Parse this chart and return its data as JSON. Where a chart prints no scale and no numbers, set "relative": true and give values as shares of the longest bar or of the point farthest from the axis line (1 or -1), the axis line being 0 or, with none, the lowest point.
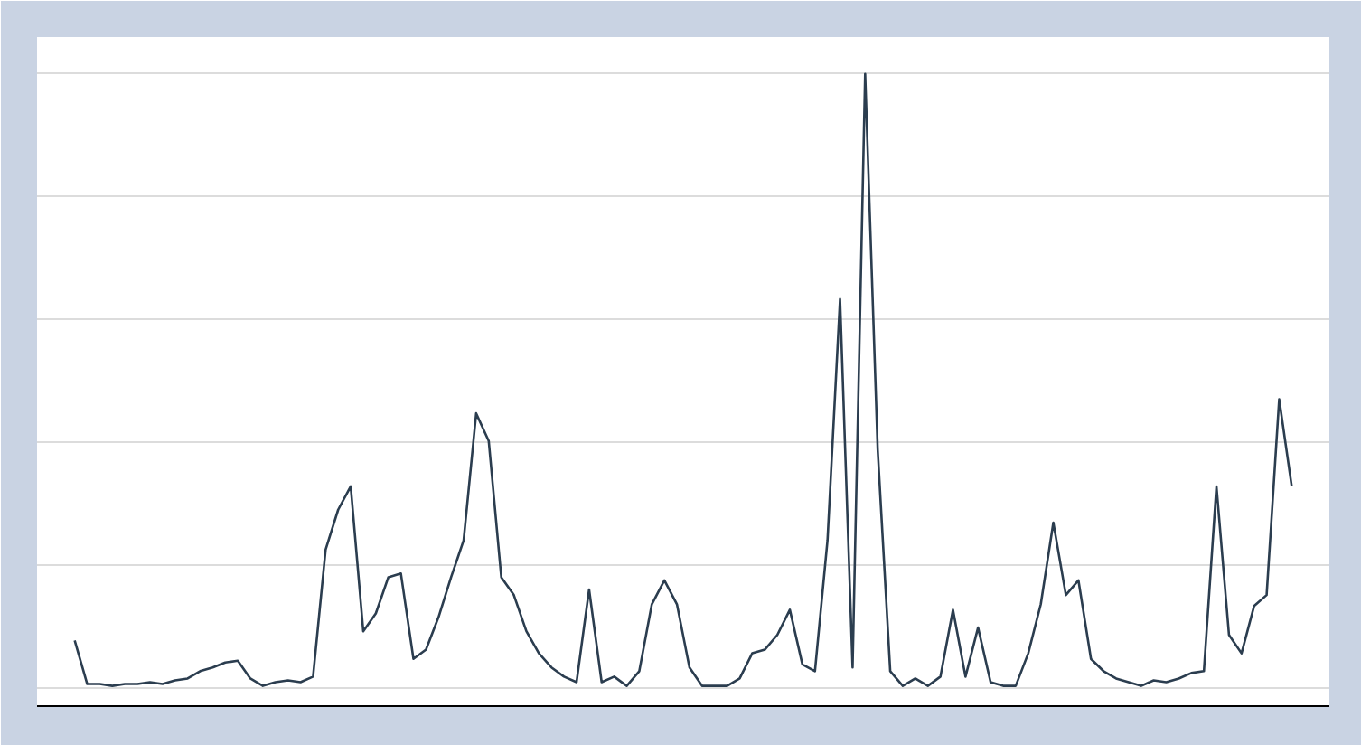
{
  "chart_data": {
    "type": "line",
    "relative": true,
    "grid": "y",
    "categories": [
      null,
      null,
      null,
      null,
      null,
      null,
      null,
      null,
      null,
      null,
      null,
      null,
      null,
      null,
      null,
      null,
      null,
      null,
      null,
      null,
      null,
      null,
      null,
      null,
      null,
      null,
      null,
      null,
      null,
      null,
      null,
      null,
      null,
      null,
      null,
      null,
      null,
      null,
      null,
      null,
      null,
      null,
      null,
      null,
      null,
      null,
      null,
      null,
      null,
      null,
      null,
      null,
      null,
      null,
      null,
      null,
      null,
      null,
      null,
      null,
      null,
      null,
      null,
      null,
      null,
      null,
      null,
      null,
      null,
      null,
      null,
      null,
      null,
      null,
      null,
      null,
      null,
      null,
      null,
      null,
      null,
      null,
      null,
      null,
      null,
      null,
      null,
      null,
      null,
      null,
      null,
      null,
      null,
      null,
      null,
      null,
      null,
      null
    ],
    "series": [
      {
        "color": "#2b3d4f",
        "values": [
          0.077,
          0.006,
          0.006,
          0.003,
          0.006,
          0.006,
          0.009,
          0.006,
          0.012,
          0.015,
          0.027,
          0.033,
          0.041,
          0.044,
          0.015,
          0.003,
          0.009,
          0.012,
          0.009,
          0.018,
          0.225,
          0.29,
          0.328,
          0.092,
          0.121,
          0.18,
          0.186,
          0.047,
          0.062,
          0.115,
          0.18,
          0.24,
          0.447,
          0.402,
          0.18,
          0.151,
          0.092,
          0.056,
          0.033,
          0.018,
          0.009,
          0.16,
          0.009,
          0.018,
          0.003,
          0.027,
          0.136,
          0.175,
          0.136,
          0.033,
          0.003,
          0.003,
          0.003,
          0.015,
          0.056,
          0.062,
          0.086,
          0.127,
          0.038,
          0.027,
          0.24,
          0.633,
          0.033,
          1.0,
          0.388,
          0.027,
          0.003,
          0.015,
          0.003,
          0.018,
          0.127,
          0.018,
          0.098,
          0.009,
          0.003,
          0.003,
          0.056,
          0.136,
          0.269,
          0.151,
          0.175,
          0.047,
          0.027,
          0.015,
          0.009,
          0.003,
          0.012,
          0.009,
          0.015,
          0.024,
          0.027,
          0.328,
          0.086,
          0.056,
          0.133,
          0.151,
          0.47,
          0.328
        ]
      }
    ]
  }
}
